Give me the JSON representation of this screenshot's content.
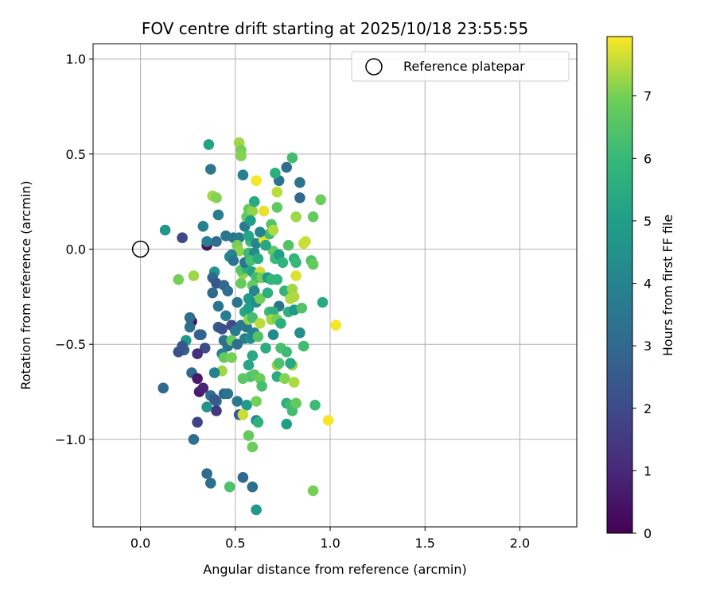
{
  "chart_data": {
    "type": "scatter",
    "title": "FOV centre drift starting at 2025/10/18 23:55:55",
    "xlabel": "Angular distance from reference (arcmin)",
    "ylabel": "Rotation from reference (arcmin)",
    "xlim": [
      -0.25,
      2.3
    ],
    "ylim": [
      -1.46,
      1.08
    ],
    "xticks": [
      0.0,
      0.5,
      1.0,
      1.5,
      2.0
    ],
    "xtick_labels": [
      "0.0",
      "0.5",
      "1.0",
      "1.5",
      "2.0"
    ],
    "yticks": [
      -1.0,
      -0.5,
      0.0,
      0.5,
      1.0
    ],
    "ytick_labels": [
      "−1.0",
      "−0.5",
      "0.0",
      "0.5",
      "1.0"
    ],
    "grid": true,
    "legend": {
      "position": "top-right",
      "entries": [
        "Reference platepar"
      ]
    },
    "reference_point": {
      "x": 0.0,
      "y": 0.0,
      "label": "Reference platepar"
    },
    "colorbar": {
      "label": "Hours from first FF file",
      "min": 0,
      "max": 7.95,
      "ticks": [
        0,
        1,
        2,
        3,
        4,
        5,
        6,
        7
      ],
      "tick_labels": [
        "0",
        "1",
        "2",
        "3",
        "4",
        "5",
        "6",
        "7"
      ],
      "colormap": "viridis"
    },
    "points": [
      [
        0.13,
        0.1,
        4.7
      ],
      [
        0.22,
        0.06,
        2.0
      ],
      [
        0.35,
        0.02,
        0.4
      ],
      [
        0.2,
        -0.16,
        7.0
      ],
      [
        0.28,
        -0.14,
        7.3
      ],
      [
        0.27,
        -0.38,
        0.3
      ],
      [
        0.26,
        -0.36,
        3.2
      ],
      [
        0.26,
        -0.41,
        3.3
      ],
      [
        0.23,
        -0.53,
        2.8
      ],
      [
        0.2,
        -0.54,
        2.2
      ],
      [
        0.24,
        -0.48,
        4.8
      ],
      [
        0.22,
        -0.51,
        2.4
      ],
      [
        0.32,
        -0.45,
        3.0
      ],
      [
        0.31,
        -0.45,
        2.7
      ],
      [
        0.34,
        -0.52,
        2.1
      ],
      [
        0.27,
        -0.65,
        3.1
      ],
      [
        0.3,
        -0.55,
        1.2
      ],
      [
        0.3,
        -0.68,
        0.6
      ],
      [
        0.31,
        -0.75,
        0.7
      ],
      [
        0.33,
        -0.73,
        0.9
      ],
      [
        0.37,
        -0.77,
        3.3
      ],
      [
        0.35,
        -0.83,
        4.6
      ],
      [
        0.4,
        -0.8,
        3.1
      ],
      [
        0.39,
        -0.79,
        2.5
      ],
      [
        0.4,
        -0.85,
        1.5
      ],
      [
        0.3,
        -0.91,
        1.8
      ],
      [
        0.28,
        -1.0,
        3.2
      ],
      [
        0.35,
        -1.18,
        3.1
      ],
      [
        0.37,
        -1.23,
        3.3
      ],
      [
        0.12,
        -0.73,
        3.0
      ],
      [
        0.36,
        0.55,
        5.2
      ],
      [
        0.37,
        0.42,
        3.5
      ],
      [
        0.38,
        0.28,
        7.3
      ],
      [
        0.4,
        0.27,
        7.1
      ],
      [
        0.41,
        0.18,
        3.8
      ],
      [
        0.33,
        0.12,
        3.9
      ],
      [
        0.35,
        0.04,
        3.9
      ],
      [
        0.4,
        0.04,
        3.2
      ],
      [
        0.45,
        0.07,
        3.5
      ],
      [
        0.49,
        0.06,
        3.6
      ],
      [
        0.52,
        0.06,
        3.7
      ],
      [
        0.52,
        0.56,
        7.3
      ],
      [
        0.53,
        0.52,
        7.0
      ],
      [
        0.53,
        0.49,
        7.1
      ],
      [
        0.54,
        0.39,
        3.9
      ],
      [
        0.51,
        0.02,
        7.0
      ],
      [
        0.52,
        -0.01,
        7.2
      ],
      [
        0.48,
        -0.03,
        3.8
      ],
      [
        0.47,
        -0.04,
        4.1
      ],
      [
        0.49,
        -0.06,
        3.4
      ],
      [
        0.39,
        -0.12,
        4.6
      ],
      [
        0.38,
        -0.15,
        2.9
      ],
      [
        0.4,
        -0.18,
        2.4
      ],
      [
        0.38,
        -0.23,
        3.1
      ],
      [
        0.41,
        -0.3,
        3.4
      ],
      [
        0.44,
        -0.19,
        3.0
      ],
      [
        0.46,
        -0.22,
        3.2
      ],
      [
        0.45,
        -0.35,
        3.8
      ],
      [
        0.41,
        -0.41,
        2.5
      ],
      [
        0.43,
        -0.42,
        2.2
      ],
      [
        0.48,
        -0.4,
        2.0
      ],
      [
        0.5,
        -0.43,
        3.7
      ],
      [
        0.44,
        -0.48,
        3.4
      ],
      [
        0.46,
        -0.51,
        3.3
      ],
      [
        0.48,
        -0.48,
        6.8
      ],
      [
        0.43,
        -0.55,
        3.9
      ],
      [
        0.44,
        -0.57,
        6.8
      ],
      [
        0.48,
        -0.57,
        7.0
      ],
      [
        0.43,
        -0.64,
        7.3
      ],
      [
        0.39,
        -0.65,
        4.0
      ],
      [
        0.44,
        -0.76,
        2.9
      ],
      [
        0.46,
        -0.76,
        3.4
      ],
      [
        0.51,
        -0.8,
        3.6
      ],
      [
        0.56,
        -0.82,
        4.9
      ],
      [
        0.52,
        -0.87,
        2.6
      ],
      [
        0.54,
        -0.87,
        7.6
      ],
      [
        0.57,
        -0.98,
        6.8
      ],
      [
        0.59,
        -1.04,
        6.9
      ],
      [
        0.47,
        -1.25,
        6.4
      ],
      [
        0.54,
        -1.2,
        3.0
      ],
      [
        0.59,
        -1.25,
        3.3
      ],
      [
        0.61,
        -1.37,
        4.8
      ],
      [
        0.61,
        -0.9,
        3.9
      ],
      [
        0.62,
        -0.91,
        5.7
      ],
      [
        0.61,
        -0.8,
        7.0
      ],
      [
        0.58,
        -0.67,
        6.4
      ],
      [
        0.6,
        -0.66,
        6.6
      ],
      [
        0.54,
        -0.68,
        6.6
      ],
      [
        0.57,
        -0.61,
        5.3
      ],
      [
        0.59,
        -0.56,
        5.4
      ],
      [
        0.55,
        -0.47,
        3.9
      ],
      [
        0.51,
        -0.5,
        3.3
      ],
      [
        0.53,
        -0.4,
        3.5
      ],
      [
        0.56,
        -0.41,
        3.6
      ],
      [
        0.58,
        -0.47,
        4.5
      ],
      [
        0.59,
        -0.45,
        4.3
      ],
      [
        0.55,
        -0.33,
        5.3
      ],
      [
        0.57,
        -0.31,
        5.0
      ],
      [
        0.57,
        -0.37,
        7.2
      ],
      [
        0.59,
        -0.36,
        6.2
      ],
      [
        0.6,
        -0.44,
        4.0
      ],
      [
        0.63,
        -0.39,
        7.5
      ],
      [
        0.62,
        -0.46,
        6.5
      ],
      [
        0.63,
        -0.68,
        6.9
      ],
      [
        0.64,
        -0.72,
        6.3
      ],
      [
        0.51,
        -0.28,
        3.5
      ],
      [
        0.53,
        -0.18,
        6.8
      ],
      [
        0.54,
        -0.13,
        7.2
      ],
      [
        0.53,
        -0.11,
        6.6
      ],
      [
        0.56,
        -0.1,
        5.6
      ],
      [
        0.55,
        -0.07,
        3.5
      ],
      [
        0.57,
        -0.02,
        6.1
      ],
      [
        0.58,
        0.04,
        6.1
      ],
      [
        0.57,
        0.07,
        5.3
      ],
      [
        0.55,
        0.12,
        3.7
      ],
      [
        0.56,
        0.17,
        6.7
      ],
      [
        0.57,
        0.21,
        6.8
      ],
      [
        0.59,
        0.2,
        7.2
      ],
      [
        0.6,
        0.25,
        5.4
      ],
      [
        0.61,
        0.36,
        7.9
      ],
      [
        0.58,
        0.15,
        5.0
      ],
      [
        0.61,
        0.03,
        4.1
      ],
      [
        0.6,
        -0.02,
        4.3
      ],
      [
        0.58,
        -0.06,
        6.3
      ],
      [
        0.59,
        -0.12,
        5.1
      ],
      [
        0.62,
        -0.05,
        5.5
      ],
      [
        0.63,
        -0.12,
        7.6
      ],
      [
        0.61,
        -0.15,
        6.2
      ],
      [
        0.59,
        -0.19,
        6.8
      ],
      [
        0.6,
        -0.22,
        4.1
      ],
      [
        0.57,
        -0.26,
        4.9
      ],
      [
        0.61,
        -0.28,
        4.4
      ],
      [
        0.63,
        -0.26,
        7.0
      ],
      [
        0.64,
        -0.15,
        7.0
      ],
      [
        0.65,
        0.05,
        7.8
      ],
      [
        0.66,
        0.02,
        6.6
      ],
      [
        0.65,
        0.2,
        7.8
      ],
      [
        0.68,
        0.08,
        6.2
      ],
      [
        0.69,
        0.13,
        6.5
      ],
      [
        0.7,
        0.1,
        7.4
      ],
      [
        0.7,
        -0.01,
        6.7
      ],
      [
        0.71,
        -0.05,
        6.1
      ],
      [
        0.73,
        -0.03,
        5.0
      ],
      [
        0.75,
        -0.07,
        5.8
      ],
      [
        0.67,
        -0.15,
        4.7
      ],
      [
        0.69,
        -0.16,
        5.9
      ],
      [
        0.72,
        -0.16,
        5.8
      ],
      [
        0.67,
        -0.23,
        5.6
      ],
      [
        0.73,
        -0.3,
        3.5
      ],
      [
        0.68,
        -0.33,
        6.1
      ],
      [
        0.7,
        -0.33,
        5.7
      ],
      [
        0.69,
        -0.37,
        7.3
      ],
      [
        0.72,
        -0.37,
        7.0
      ],
      [
        0.74,
        -0.39,
        5.6
      ],
      [
        0.7,
        -0.45,
        4.3
      ],
      [
        0.66,
        -0.52,
        5.5
      ],
      [
        0.74,
        -0.52,
        6.3
      ],
      [
        0.72,
        -0.61,
        7.3
      ],
      [
        0.73,
        -0.6,
        6.4
      ],
      [
        0.72,
        -0.67,
        5.5
      ],
      [
        0.76,
        -0.68,
        7.1
      ],
      [
        0.77,
        -0.81,
        5.6
      ],
      [
        0.77,
        -0.92,
        5.0
      ],
      [
        0.79,
        -0.82,
        6.1
      ],
      [
        0.8,
        -0.85,
        6.2
      ],
      [
        0.82,
        -0.81,
        6.8
      ],
      [
        0.8,
        -0.61,
        7.2
      ],
      [
        0.81,
        -0.7,
        7.4
      ],
      [
        0.79,
        -0.6,
        5.4
      ],
      [
        0.77,
        -0.54,
        6.1
      ],
      [
        0.76,
        -0.22,
        5.8
      ],
      [
        0.79,
        -0.26,
        7.4
      ],
      [
        0.8,
        -0.21,
        7.3
      ],
      [
        0.81,
        -0.25,
        7.4
      ],
      [
        0.82,
        -0.14,
        7.7
      ],
      [
        0.78,
        -0.33,
        5.7
      ],
      [
        0.81,
        -0.32,
        4.8
      ],
      [
        0.85,
        -0.31,
        6.5
      ],
      [
        0.86,
        -0.51,
        6.2
      ],
      [
        0.84,
        -0.44,
        4.4
      ],
      [
        0.78,
        0.02,
        6.5
      ],
      [
        0.81,
        -0.05,
        5.8
      ],
      [
        0.82,
        -0.07,
        6.0
      ],
      [
        0.82,
        0.17,
        7.3
      ],
      [
        0.86,
        0.03,
        7.6
      ],
      [
        0.87,
        0.04,
        7.6
      ],
      [
        0.9,
        -0.06,
        6.4
      ],
      [
        0.91,
        -0.08,
        6.8
      ],
      [
        0.91,
        0.17,
        6.8
      ],
      [
        0.92,
        -0.82,
        6.1
      ],
      [
        0.91,
        -1.27,
        7.0
      ],
      [
        0.96,
        -0.28,
        5.4
      ],
      [
        0.95,
        0.26,
        6.9
      ],
      [
        0.99,
        -0.9,
        7.9
      ],
      [
        1.03,
        -0.4,
        7.9
      ],
      [
        0.72,
        0.3,
        7.5
      ],
      [
        0.72,
        0.22,
        6.7
      ],
      [
        0.73,
        0.36,
        3.4
      ],
      [
        0.71,
        0.4,
        5.6
      ],
      [
        0.77,
        0.43,
        3.2
      ],
      [
        0.8,
        0.48,
        6.2
      ],
      [
        0.84,
        0.35,
        3.4
      ],
      [
        0.84,
        0.27,
        3.1
      ],
      [
        0.66,
        0.02,
        5.3
      ],
      [
        0.63,
        0.09,
        4.0
      ]
    ]
  }
}
